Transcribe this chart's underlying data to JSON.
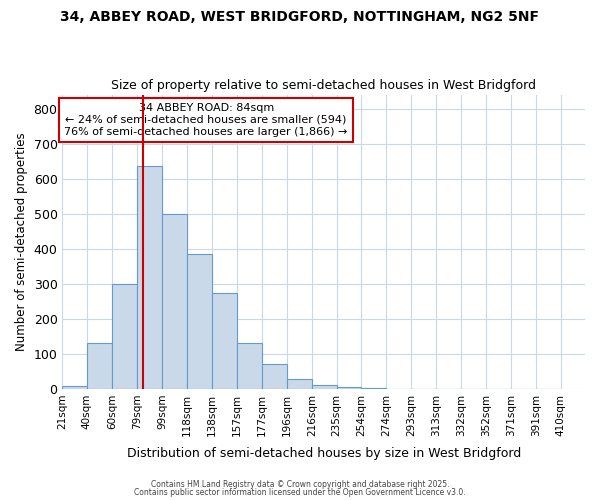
{
  "title_line1": "34, ABBEY ROAD, WEST BRIDGFORD, NOTTINGHAM, NG2 5NF",
  "title_line2": "Size of property relative to semi-detached houses in West Bridgford",
  "xlabel": "Distribution of semi-detached houses by size in West Bridgford",
  "ylabel": "Number of semi-detached properties",
  "bin_labels": [
    "21sqm",
    "40sqm",
    "60sqm",
    "79sqm",
    "99sqm",
    "118sqm",
    "138sqm",
    "157sqm",
    "177sqm",
    "196sqm",
    "216sqm",
    "235sqm",
    "254sqm",
    "274sqm",
    "293sqm",
    "313sqm",
    "332sqm",
    "352sqm",
    "371sqm",
    "391sqm",
    "410sqm"
  ],
  "bin_edges": [
    21,
    40,
    60,
    79,
    99,
    118,
    138,
    157,
    177,
    196,
    216,
    235,
    254,
    274,
    293,
    313,
    332,
    352,
    371,
    391,
    410
  ],
  "bar_heights": [
    8,
    130,
    300,
    635,
    500,
    385,
    275,
    130,
    70,
    28,
    12,
    5,
    3,
    0,
    0,
    0,
    0,
    0,
    0,
    0
  ],
  "bar_color": "#c9d9ea",
  "bar_edge_color": "#6699cc",
  "red_line_x": 84,
  "red_line_color": "#cc0000",
  "annotation_title": "34 ABBEY ROAD: 84sqm",
  "annotation_line2": "← 24% of semi-detached houses are smaller (594)",
  "annotation_line3": "76% of semi-detached houses are larger (1,866) →",
  "annotation_box_color": "#cc0000",
  "ylim": [
    0,
    840
  ],
  "yticks": [
    0,
    100,
    200,
    300,
    400,
    500,
    600,
    700,
    800
  ],
  "background_color": "#ffffff",
  "axes_background": "#ffffff",
  "grid_color": "#c8d8e8",
  "footer_line1": "Contains HM Land Registry data © Crown copyright and database right 2025.",
  "footer_line2": "Contains public sector information licensed under the Open Government Licence v3.0."
}
